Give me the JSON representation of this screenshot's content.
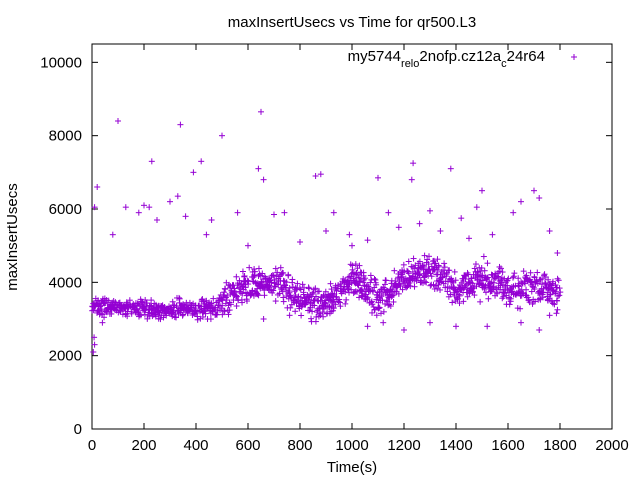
{
  "chart_data": {
    "type": "scatter",
    "title": "maxInsertUsecs vs Time for qr500.L3",
    "xlabel": "Time(s)",
    "ylabel": "maxInsertUsecs",
    "xlim": [
      0,
      2000
    ],
    "ylim": [
      0,
      10500
    ],
    "xticks": [
      0,
      200,
      400,
      600,
      800,
      1000,
      1200,
      1400,
      1600,
      1800,
      2000
    ],
    "yticks": [
      0,
      2000,
      4000,
      6000,
      8000,
      10000
    ],
    "legend": {
      "placement": "top-right",
      "label_parts": [
        "my5744",
        "rel",
        "o",
        "2nofp.cz12a",
        "c",
        "24r64"
      ]
    },
    "marker": "plus",
    "color": "#9400d3",
    "series": [
      {
        "name": "my5744_rel_o2nofp.cz12a_c24r64",
        "x_range": [
          0,
          1800
        ],
        "baseline_segments": [
          [
            0,
            3350
          ],
          [
            300,
            3250
          ],
          [
            480,
            3300
          ],
          [
            560,
            3800
          ],
          [
            700,
            4050
          ],
          [
            800,
            3500
          ],
          [
            900,
            3350
          ],
          [
            1000,
            4100
          ],
          [
            1100,
            3500
          ],
          [
            1200,
            4100
          ],
          [
            1300,
            4300
          ],
          [
            1400,
            3800
          ],
          [
            1500,
            4100
          ],
          [
            1600,
            3800
          ],
          [
            1700,
            3900
          ],
          [
            1800,
            3600
          ]
        ],
        "outliers": [
          [
            100,
            8400
          ],
          [
            340,
            8300
          ],
          [
            500,
            8000
          ],
          [
            650,
            8650
          ],
          [
            230,
            7300
          ],
          [
            420,
            7300
          ],
          [
            640,
            7100
          ],
          [
            1235,
            7250
          ],
          [
            1380,
            7100
          ],
          [
            20,
            6600
          ],
          [
            80,
            5300
          ],
          [
            10,
            6050
          ],
          [
            130,
            6050
          ],
          [
            180,
            5900
          ],
          [
            200,
            6100
          ],
          [
            220,
            6050
          ],
          [
            250,
            5700
          ],
          [
            300,
            6200
          ],
          [
            330,
            6350
          ],
          [
            360,
            5800
          ],
          [
            390,
            7000
          ],
          [
            440,
            5300
          ],
          [
            460,
            5700
          ],
          [
            560,
            5900
          ],
          [
            600,
            5000
          ],
          [
            660,
            6800
          ],
          [
            700,
            5850
          ],
          [
            740,
            5900
          ],
          [
            800,
            5100
          ],
          [
            860,
            6900
          ],
          [
            880,
            6950
          ],
          [
            900,
            5400
          ],
          [
            930,
            5900
          ],
          [
            990,
            5300
          ],
          [
            1000,
            5000
          ],
          [
            1060,
            5150
          ],
          [
            1100,
            6850
          ],
          [
            1140,
            5900
          ],
          [
            1180,
            5500
          ],
          [
            1230,
            6800
          ],
          [
            1260,
            5600
          ],
          [
            1300,
            5950
          ],
          [
            1340,
            5400
          ],
          [
            1420,
            5750
          ],
          [
            1450,
            5200
          ],
          [
            1480,
            6050
          ],
          [
            1500,
            6500
          ],
          [
            1540,
            5300
          ],
          [
            1620,
            5900
          ],
          [
            1650,
            6200
          ],
          [
            1700,
            6500
          ],
          [
            1720,
            6300
          ],
          [
            1760,
            5400
          ],
          [
            1790,
            4800
          ],
          [
            10,
            2300
          ],
          [
            5,
            2100
          ],
          [
            8,
            2500
          ],
          [
            40,
            2900
          ],
          [
            660,
            3000
          ],
          [
            760,
            3100
          ],
          [
            1060,
            2800
          ],
          [
            1120,
            2900
          ],
          [
            1200,
            2700
          ],
          [
            1300,
            2900
          ],
          [
            1400,
            2800
          ],
          [
            1520,
            2800
          ],
          [
            1650,
            2900
          ],
          [
            1720,
            2700
          ],
          [
            1760,
            3100
          ]
        ]
      }
    ]
  }
}
